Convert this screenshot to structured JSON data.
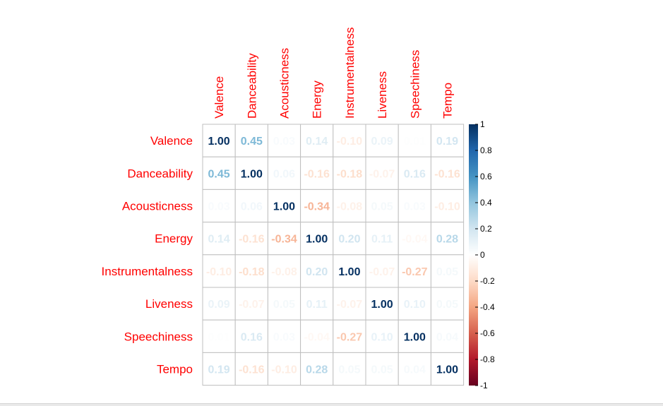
{
  "chart_data": {
    "type": "heatmap",
    "variables": [
      "Valence",
      "Danceability",
      "Acousticness",
      "Energy",
      "Instrumentalness",
      "Liveness",
      "Speechiness",
      "Tempo"
    ],
    "matrix": [
      [
        1.0,
        0.45,
        0.03,
        0.14,
        -0.1,
        0.09,
        0.01,
        0.19
      ],
      [
        0.45,
        1.0,
        0.06,
        -0.16,
        -0.18,
        -0.07,
        0.16,
        -0.16
      ],
      [
        0.03,
        0.06,
        1.0,
        -0.34,
        -0.08,
        0.05,
        0.03,
        -0.1
      ],
      [
        0.14,
        -0.16,
        -0.34,
        1.0,
        0.2,
        0.11,
        -0.04,
        0.28
      ],
      [
        -0.1,
        -0.18,
        -0.08,
        0.2,
        1.0,
        -0.07,
        -0.27,
        0.05
      ],
      [
        0.09,
        -0.07,
        0.05,
        0.11,
        -0.07,
        1.0,
        0.1,
        0.05
      ],
      [
        0.01,
        0.16,
        0.03,
        -0.04,
        -0.27,
        0.1,
        1.0,
        0.04
      ],
      [
        0.19,
        -0.16,
        -0.1,
        0.28,
        0.05,
        0.05,
        0.04,
        1.0
      ]
    ],
    "colorbar": {
      "range": [
        -1,
        1
      ],
      "tick_labels": [
        "1",
        "0.8",
        "0.6",
        "0.4",
        "0.2",
        "0",
        "-0.2",
        "-0.4",
        "-0.6",
        "-0.8",
        "-1"
      ],
      "tick_values": [
        1,
        0.8,
        0.6,
        0.4,
        0.2,
        0,
        -0.2,
        -0.4,
        -0.6,
        -0.8,
        -1
      ]
    },
    "label_color": "#ff0000",
    "grid_color": "#bfbfbf",
    "colors": {
      "negative": "#67001f",
      "neutral": "#ffffff",
      "positive": "#053061"
    }
  }
}
